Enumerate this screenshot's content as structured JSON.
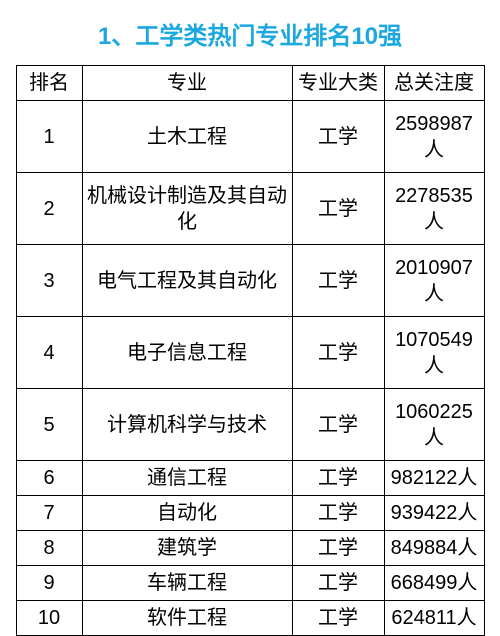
{
  "title": {
    "text": "1、工学类热门专业排名10强",
    "color": "#1ba8e0",
    "fontsize": 24
  },
  "table": {
    "text_color": "#000000",
    "border_color": "#000000",
    "header_fontsize": 20,
    "cell_fontsize": 20,
    "columns": [
      "排名",
      "专业",
      "专业大类",
      "总关注度"
    ],
    "tall_row_height": 72,
    "short_row_height": 29,
    "rows": [
      {
        "rank": "1",
        "major": "土木工程",
        "cat": "工学",
        "attn": "2598987人",
        "tall": true
      },
      {
        "rank": "2",
        "major": "机械设计制造及其自动化",
        "cat": "工学",
        "attn": "2278535人",
        "tall": true
      },
      {
        "rank": "3",
        "major": "电气工程及其自动化",
        "cat": "工学",
        "attn": "2010907人",
        "tall": true
      },
      {
        "rank": "4",
        "major": "电子信息工程",
        "cat": "工学",
        "attn": "1070549人",
        "tall": true
      },
      {
        "rank": "5",
        "major": "计算机科学与技术",
        "cat": "工学",
        "attn": "1060225人",
        "tall": true
      },
      {
        "rank": "6",
        "major": "通信工程",
        "cat": "工学",
        "attn": "982122人",
        "tall": false
      },
      {
        "rank": "7",
        "major": "自动化",
        "cat": "工学",
        "attn": "939422人",
        "tall": false
      },
      {
        "rank": "8",
        "major": "建筑学",
        "cat": "工学",
        "attn": "849884人",
        "tall": false
      },
      {
        "rank": "9",
        "major": "车辆工程",
        "cat": "工学",
        "attn": "668499人",
        "tall": false
      },
      {
        "rank": "10",
        "major": "软件工程",
        "cat": "工学",
        "attn": "624811人",
        "tall": false
      }
    ]
  }
}
